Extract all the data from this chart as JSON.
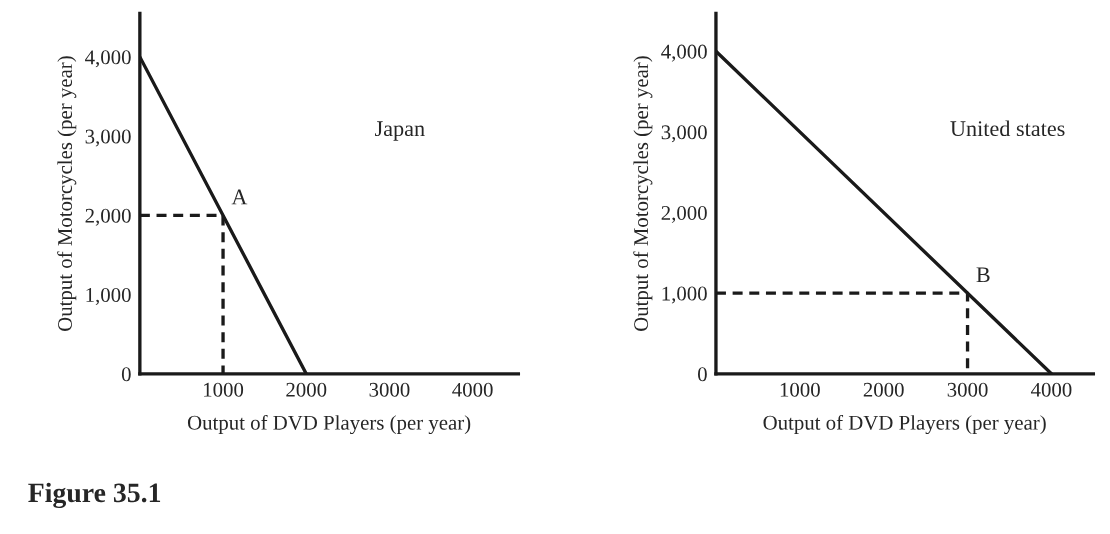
{
  "chart_data": [
    {
      "type": "line",
      "xlabel": "Output of DVD Players (per year)",
      "ylabel": "Output of Motorcycles (per year)",
      "series": [
        {
          "x": [
            0,
            2000
          ],
          "values": [
            4000,
            0
          ],
          "color": "#1a1a1a",
          "line_style": "solid"
        },
        {
          "x": [
            0,
            1000,
            1000
          ],
          "values": [
            2000,
            2000,
            0
          ],
          "color": "#1a1a1a",
          "line_style": "dashed"
        }
      ],
      "xlim": [
        0,
        4550
      ],
      "ylim": [
        0,
        4550
      ],
      "xticks": [
        1000,
        2000,
        3000,
        4000
      ],
      "yticks": [
        {
          "value": 0,
          "label": "0"
        },
        {
          "value": 1000,
          "label": "1,000"
        },
        {
          "value": 2000,
          "label": "2,000"
        },
        {
          "value": 3000,
          "label": "3,000"
        },
        {
          "value": 4000,
          "label": "4,000"
        }
      ],
      "annotations": [
        {
          "text": "A",
          "x": 1000,
          "y": 2000
        },
        "Japan",
        "Figure 35.1"
      ],
      "grid": false,
      "legend": false,
      "marker": "none"
    },
    {
      "type": "line",
      "xlabel": "Output of DVD Players (per year)",
      "ylabel": "Output of Motorcycles (per year)",
      "series": [
        {
          "x": [
            0,
            4000
          ],
          "values": [
            4000,
            0
          ],
          "color": "#1a1a1a",
          "line_style": "solid"
        },
        {
          "x": [
            0,
            3000,
            3000
          ],
          "values": [
            1000,
            1000,
            0
          ],
          "color": "#1a1a1a",
          "line_style": "dashed"
        }
      ],
      "xlim": [
        0,
        4500
      ],
      "ylim": [
        0,
        4470
      ],
      "xticks": [
        1000,
        2000,
        3000,
        4000
      ],
      "yticks": [
        {
          "value": 0,
          "label": "0"
        },
        {
          "value": 1000,
          "label": "1,000"
        },
        {
          "value": 2000,
          "label": "2,000"
        },
        {
          "value": 3000,
          "label": "3,000"
        },
        {
          "value": 4000,
          "label": "4,000"
        }
      ],
      "annotations": [
        {
          "text": "B",
          "x": 3000,
          "y": 1000
        },
        "United states"
      ],
      "grid": false,
      "legend": false,
      "marker": "none"
    }
  ]
}
